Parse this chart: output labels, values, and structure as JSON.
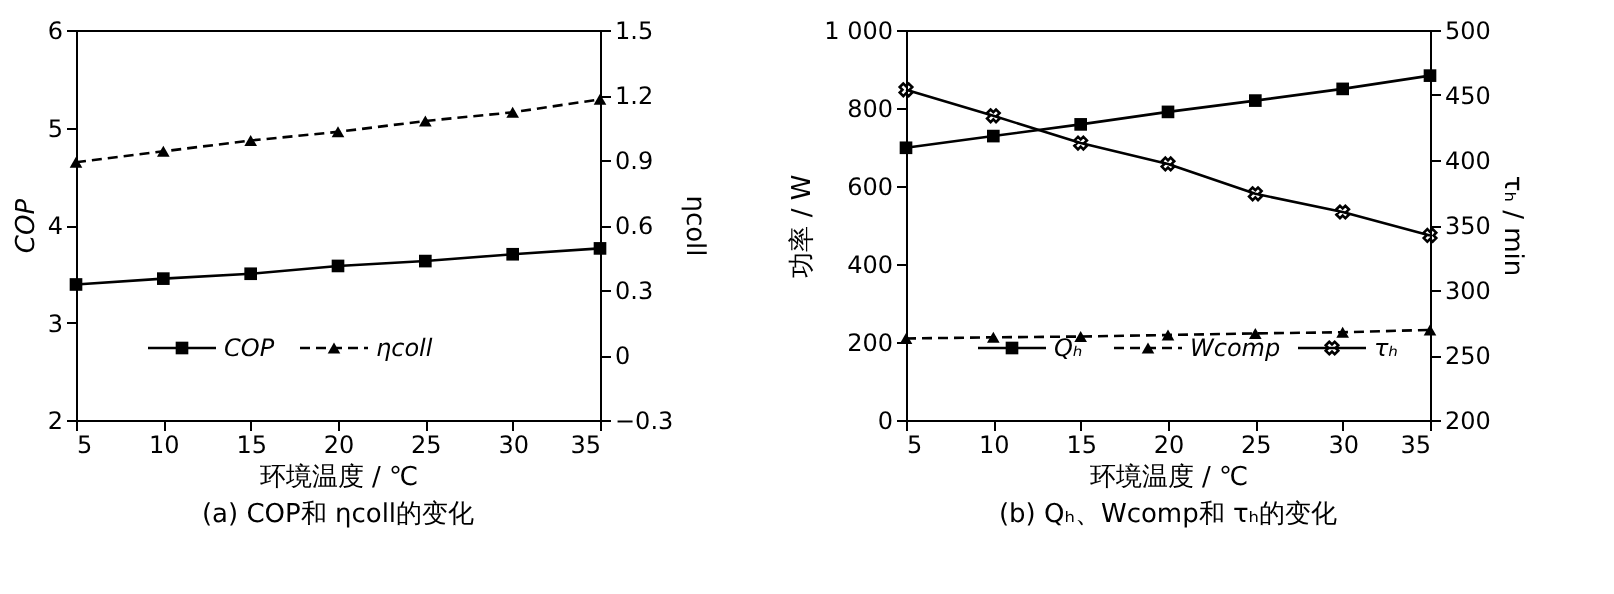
{
  "chart_data": [
    {
      "type": "line",
      "title": "(a) COP和 ηcoll的变化",
      "xlabel": "环境温度 / ℃",
      "ylabel": "COP",
      "y2label": "ηcoll",
      "x": [
        5,
        10,
        15,
        20,
        25,
        30,
        35
      ],
      "xlim": [
        5,
        35
      ],
      "xticks": [
        5,
        10,
        15,
        20,
        25,
        30,
        35
      ],
      "ylim": [
        2,
        6
      ],
      "yticks": [
        2,
        3,
        4,
        5,
        6
      ],
      "y2lim": [
        -0.3,
        1.5
      ],
      "y2ticks": [
        -0.3,
        0,
        0.3,
        0.6,
        0.9,
        1.2,
        1.5
      ],
      "grid": false,
      "legend": "bottom",
      "series": [
        {
          "name": "COP",
          "color": "#000000",
          "marker": "square",
          "line_style": "solid",
          "values": [
            3.39,
            3.45,
            3.5,
            3.58,
            3.63,
            3.7,
            3.76
          ]
        },
        {
          "name": "ηcoll",
          "color": "#000000",
          "marker": "triangle",
          "line_style": "dashed",
          "axis": "y2",
          "values": [
            0.89,
            0.94,
            0.99,
            1.03,
            1.08,
            1.12,
            1.18
          ]
        }
      ]
    },
    {
      "type": "line",
      "title": "(b) Qₕ、Wcomp和 τₕ的变化",
      "xlabel": "环境温度 / ℃",
      "ylabel": "功率 / W",
      "y2label": "τₕ / min",
      "x": [
        5,
        10,
        15,
        20,
        25,
        30,
        35
      ],
      "xlim": [
        5,
        35
      ],
      "xticks": [
        5,
        10,
        15,
        20,
        25,
        30,
        35
      ],
      "ylim": [
        0,
        1000
      ],
      "yticks": [
        0,
        200,
        400,
        600,
        800,
        {
          "value": 1000,
          "label": "1 000"
        }
      ],
      "y2lim": [
        200,
        500
      ],
      "y2ticks": [
        200,
        250,
        300,
        350,
        400,
        450,
        500
      ],
      "grid": false,
      "legend": "bottom",
      "series": [
        {
          "name": "Qₕ",
          "color": "#000000",
          "marker": "square",
          "line_style": "solid",
          "values": [
            698,
            728,
            758,
            790,
            819,
            849,
            883
          ]
        },
        {
          "name": "Wcomp",
          "color": "#000000",
          "marker": "triangle",
          "line_style": "dashed",
          "values": [
            209,
            212,
            214,
            218,
            222,
            225,
            231
          ]
        },
        {
          "name": "τₕ",
          "color": "#000000",
          "marker": "cross",
          "line_style": "solid",
          "axis": "y2",
          "values": [
            454,
            434,
            413,
            397,
            374,
            360,
            342
          ]
        }
      ]
    }
  ]
}
